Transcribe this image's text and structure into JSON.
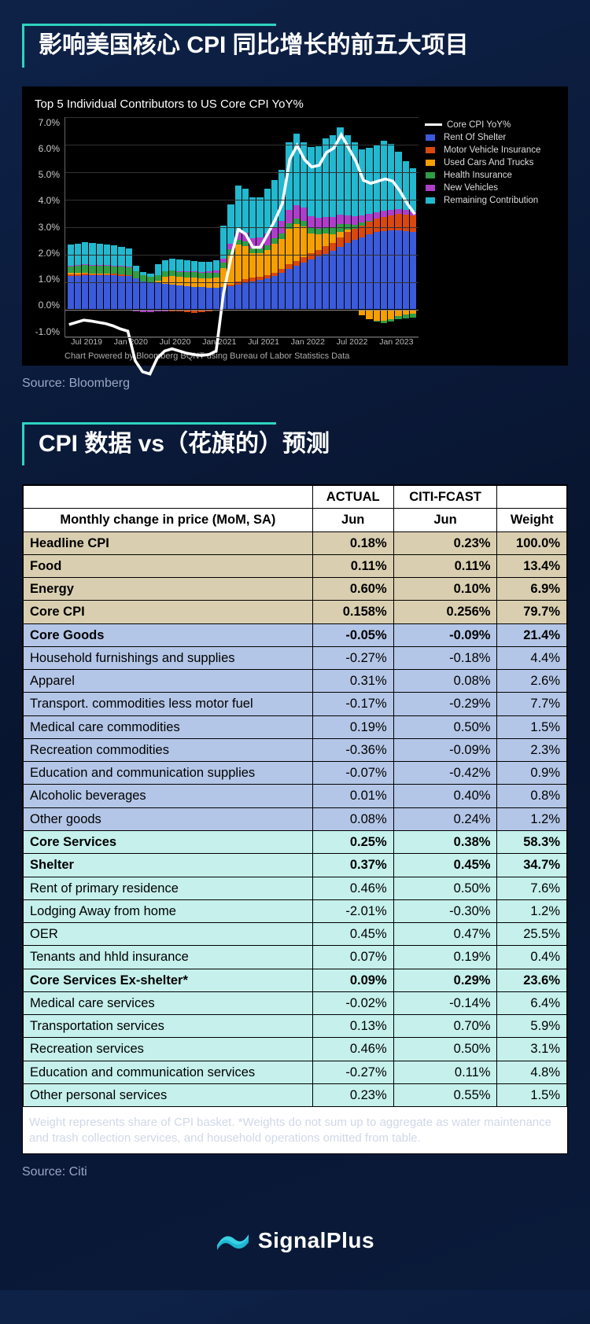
{
  "section1": {
    "title": "影响美国核心 CPI 同比增长的前五大项目",
    "source": "Source: Bloomberg",
    "chart": {
      "title": "Top 5 Individual Contributors to US Core CPI YoY%",
      "note": "Chart Powered by Bloomberg BQNT using Bureau of Labor Statistics Data",
      "ylim": [
        -1.0,
        7.0
      ],
      "yticks": [
        "7.0%",
        "6.0%",
        "5.0%",
        "4.0%",
        "3.0%",
        "2.0%",
        "1.0%",
        "0.0%",
        "-1.0%"
      ],
      "xticks": [
        "Jul 2019",
        "Jan 2020",
        "Jul 2020",
        "Jan 2021",
        "Jul 2021",
        "Jan 2022",
        "Jul 2022",
        "Jan 2023"
      ],
      "legend": [
        {
          "label": "Core CPI YoY%",
          "type": "line",
          "color": "#ffffff"
        },
        {
          "label": "Rent Of Shelter",
          "type": "box",
          "color": "#3b5bdb"
        },
        {
          "label": "Motor Vehicle Insurance",
          "type": "box",
          "color": "#d9480f"
        },
        {
          "label": "Used Cars And Trucks",
          "type": "box",
          "color": "#f59f00"
        },
        {
          "label": "Health Insurance",
          "type": "box",
          "color": "#2f9e44"
        },
        {
          "label": "New Vehicles",
          "type": "box",
          "color": "#ae3ec9"
        },
        {
          "label": "Remaining Contribution",
          "type": "box",
          "color": "#22b8cf"
        }
      ],
      "series_order": [
        "rent",
        "motorins",
        "used",
        "health",
        "newveh",
        "remain"
      ],
      "colors": {
        "rent": "#3b5bdb",
        "motorins": "#d9480f",
        "used": "#f59f00",
        "health": "#2f9e44",
        "newveh": "#ae3ec9",
        "remain": "#22b8cf",
        "line": "#ffffff"
      },
      "n_bars": 48,
      "bars": [
        {
          "rent": 1.2,
          "motorins": 0.05,
          "used": 0.05,
          "health": 0.25,
          "newveh": 0.02,
          "remain": 0.75,
          "total": 2.3
        },
        {
          "rent": 1.2,
          "motorins": 0.05,
          "used": 0.04,
          "health": 0.28,
          "newveh": 0.02,
          "remain": 0.78,
          "total": 2.35
        },
        {
          "rent": 1.22,
          "motorins": 0.05,
          "used": 0.03,
          "health": 0.3,
          "newveh": 0.02,
          "remain": 0.8,
          "total": 2.4
        },
        {
          "rent": 1.22,
          "motorins": 0.04,
          "used": 0.02,
          "health": 0.3,
          "newveh": 0.02,
          "remain": 0.78,
          "total": 2.38
        },
        {
          "rent": 1.22,
          "motorins": 0.04,
          "used": 0.02,
          "health": 0.3,
          "newveh": 0.02,
          "remain": 0.75,
          "total": 2.35
        },
        {
          "rent": 1.22,
          "motorins": 0.04,
          "used": 0.02,
          "health": 0.3,
          "newveh": 0.02,
          "remain": 0.72,
          "total": 2.32
        },
        {
          "rent": 1.22,
          "motorins": 0.04,
          "used": -0.02,
          "health": 0.3,
          "newveh": 0.01,
          "remain": 0.72,
          "total": 2.27
        },
        {
          "rent": 1.2,
          "motorins": 0.04,
          "used": -0.05,
          "health": 0.3,
          "newveh": 0.01,
          "remain": 0.7,
          "total": 2.2
        },
        {
          "rent": 1.18,
          "motorins": 0.03,
          "used": -0.05,
          "health": 0.3,
          "newveh": 0.01,
          "remain": 0.68,
          "total": 2.15
        },
        {
          "rent": 1.1,
          "motorins": 0.0,
          "used": -0.05,
          "health": 0.25,
          "newveh": -0.02,
          "remain": 0.2,
          "total": 1.48
        },
        {
          "rent": 1.0,
          "motorins": -0.02,
          "used": -0.03,
          "health": 0.22,
          "newveh": -0.04,
          "remain": 0.1,
          "total": 1.23
        },
        {
          "rent": 0.95,
          "motorins": -0.03,
          "used": -0.02,
          "health": 0.2,
          "newveh": -0.04,
          "remain": 0.12,
          "total": 1.18
        },
        {
          "rent": 0.92,
          "motorins": -0.05,
          "used": 0.1,
          "health": 0.2,
          "newveh": -0.03,
          "remain": 0.4,
          "total": 1.54
        },
        {
          "rent": 0.9,
          "motorins": -0.05,
          "used": 0.25,
          "health": 0.2,
          "newveh": -0.02,
          "remain": 0.42,
          "total": 1.7
        },
        {
          "rent": 0.88,
          "motorins": -0.06,
          "used": 0.3,
          "health": 0.2,
          "newveh": 0.0,
          "remain": 0.43,
          "total": 1.75
        },
        {
          "rent": 0.85,
          "motorins": -0.08,
          "used": 0.3,
          "health": 0.2,
          "newveh": 0.02,
          "remain": 0.41,
          "total": 1.7
        },
        {
          "rent": 0.82,
          "motorins": -0.1,
          "used": 0.3,
          "health": 0.2,
          "newveh": 0.03,
          "remain": 0.4,
          "total": 1.65
        },
        {
          "rent": 0.8,
          "motorins": -0.12,
          "used": 0.32,
          "health": 0.2,
          "newveh": 0.04,
          "remain": 0.38,
          "total": 1.62
        },
        {
          "rent": 0.78,
          "motorins": -0.1,
          "used": 0.33,
          "health": 0.18,
          "newveh": 0.05,
          "remain": 0.36,
          "total": 1.6
        },
        {
          "rent": 0.76,
          "motorins": -0.08,
          "used": 0.35,
          "health": 0.18,
          "newveh": 0.06,
          "remain": 0.35,
          "total": 1.62
        },
        {
          "rent": 0.75,
          "motorins": -0.05,
          "used": 0.38,
          "health": 0.18,
          "newveh": 0.08,
          "remain": 0.36,
          "total": 1.7
        },
        {
          "rent": 0.78,
          "motorins": 0.0,
          "used": 0.7,
          "health": 0.18,
          "newveh": 0.15,
          "remain": 1.2,
          "total": 3.01
        },
        {
          "rent": 0.82,
          "motorins": 0.05,
          "used": 1.1,
          "health": 0.18,
          "newveh": 0.2,
          "remain": 1.45,
          "total": 3.8
        },
        {
          "rent": 0.88,
          "motorins": 0.1,
          "used": 1.35,
          "health": 0.18,
          "newveh": 0.25,
          "remain": 1.7,
          "total": 4.46
        },
        {
          "rent": 0.95,
          "motorins": 0.12,
          "used": 1.2,
          "health": 0.18,
          "newveh": 0.3,
          "remain": 1.6,
          "total": 4.35
        },
        {
          "rent": 1.0,
          "motorins": 0.12,
          "used": 0.9,
          "health": 0.18,
          "newveh": 0.35,
          "remain": 1.5,
          "total": 4.05
        },
        {
          "rent": 1.05,
          "motorins": 0.12,
          "used": 0.85,
          "health": 0.18,
          "newveh": 0.4,
          "remain": 1.45,
          "total": 4.05
        },
        {
          "rent": 1.1,
          "motorins": 0.12,
          "used": 0.9,
          "health": 0.19,
          "newveh": 0.42,
          "remain": 1.62,
          "total": 4.35
        },
        {
          "rent": 1.18,
          "motorins": 0.12,
          "used": 1.05,
          "health": 0.2,
          "newveh": 0.42,
          "remain": 1.7,
          "total": 4.67
        },
        {
          "rent": 1.3,
          "motorins": 0.14,
          "used": 1.1,
          "health": 0.2,
          "newveh": 0.45,
          "remain": 1.85,
          "total": 5.04
        },
        {
          "rent": 1.45,
          "motorins": 0.16,
          "used": 1.3,
          "health": 0.2,
          "newveh": 0.48,
          "remain": 2.45,
          "total": 6.04
        },
        {
          "rent": 1.55,
          "motorins": 0.18,
          "used": 1.35,
          "health": 0.2,
          "newveh": 0.48,
          "remain": 2.6,
          "total": 6.36
        },
        {
          "rent": 1.68,
          "motorins": 0.2,
          "used": 1.1,
          "health": 0.2,
          "newveh": 0.48,
          "remain": 2.38,
          "total": 6.04
        },
        {
          "rent": 1.8,
          "motorins": 0.22,
          "used": 0.7,
          "health": 0.2,
          "newveh": 0.45,
          "remain": 2.5,
          "total": 5.87
        },
        {
          "rent": 1.9,
          "motorins": 0.24,
          "used": 0.55,
          "health": 0.2,
          "newveh": 0.42,
          "remain": 2.6,
          "total": 5.91
        },
        {
          "rent": 2.0,
          "motorins": 0.27,
          "used": 0.45,
          "health": 0.22,
          "newveh": 0.4,
          "remain": 2.86,
          "total": 6.2
        },
        {
          "rent": 2.1,
          "motorins": 0.3,
          "used": 0.3,
          "health": 0.24,
          "newveh": 0.38,
          "remain": 2.98,
          "total": 6.3
        },
        {
          "rent": 2.25,
          "motorins": 0.35,
          "used": 0.2,
          "health": 0.26,
          "newveh": 0.35,
          "remain": 3.19,
          "total": 6.6
        },
        {
          "rent": 2.4,
          "motorins": 0.38,
          "used": 0.08,
          "health": 0.22,
          "newveh": 0.32,
          "remain": 2.9,
          "total": 6.3
        },
        {
          "rent": 2.5,
          "motorins": 0.4,
          "used": -0.05,
          "health": 0.15,
          "newveh": 0.3,
          "remain": 2.7,
          "total": 6.0
        },
        {
          "rent": 2.6,
          "motorins": 0.42,
          "used": -0.22,
          "health": 0.1,
          "newveh": 0.27,
          "remain": 2.4,
          "total": 5.57
        },
        {
          "rent": 2.7,
          "motorins": 0.45,
          "used": -0.35,
          "health": 0.05,
          "newveh": 0.25,
          "remain": 2.4,
          "total": 5.5
        },
        {
          "rent": 2.78,
          "motorins": 0.48,
          "used": -0.4,
          "health": -0.02,
          "newveh": 0.23,
          "remain": 2.48,
          "total": 5.55
        },
        {
          "rent": 2.82,
          "motorins": 0.52,
          "used": -0.42,
          "health": -0.08,
          "newveh": 0.21,
          "remain": 2.55,
          "total": 5.6
        },
        {
          "rent": 2.85,
          "motorins": 0.55,
          "used": -0.35,
          "health": -0.1,
          "newveh": 0.2,
          "remain": 2.4,
          "total": 5.55
        },
        {
          "rent": 2.85,
          "motorins": 0.58,
          "used": -0.25,
          "health": -0.12,
          "newveh": 0.18,
          "remain": 2.08,
          "total": 5.32
        },
        {
          "rent": 2.82,
          "motorins": 0.6,
          "used": -0.18,
          "health": -0.15,
          "newveh": 0.16,
          "remain": 1.78,
          "total": 5.03
        },
        {
          "rent": 2.78,
          "motorins": 0.6,
          "used": -0.15,
          "health": -0.15,
          "newveh": 0.14,
          "remain": 1.58,
          "total": 4.8
        }
      ]
    }
  },
  "section2": {
    "title": "CPI 数据 vs（花旗的）预测",
    "source": "Source: Citi",
    "table": {
      "col_headers": {
        "c1": "ACTUAL",
        "c2": "CITI-FCAST",
        "c3": ""
      },
      "sub_headers": {
        "label": "Monthly change in price (MoM, SA)",
        "c1": "Jun",
        "c2": "Jun",
        "c3": "Weight"
      },
      "rows": [
        {
          "cls": "tan",
          "label": "Headline CPI",
          "a": "0.18%",
          "f": "0.23%",
          "w": "100.0%"
        },
        {
          "cls": "tan",
          "label": "Food",
          "a": "0.11%",
          "f": "0.11%",
          "w": "13.4%"
        },
        {
          "cls": "tan",
          "label": "Energy",
          "a": "0.60%",
          "f": "0.10%",
          "w": "6.9%"
        },
        {
          "cls": "tan",
          "label": "Core CPI",
          "a": "0.158%",
          "f": "0.256%",
          "w": "79.7%"
        },
        {
          "cls": "blue",
          "label": "Core Goods",
          "a": "-0.05%",
          "f": "-0.09%",
          "w": "21.4%"
        },
        {
          "cls": "lblue",
          "label": "Household furnishings and supplies",
          "a": "-0.27%",
          "f": "-0.18%",
          "w": "4.4%"
        },
        {
          "cls": "lblue",
          "label": "Apparel",
          "a": "0.31%",
          "f": "0.08%",
          "w": "2.6%"
        },
        {
          "cls": "lblue",
          "label": "Transport. commodities less motor fuel",
          "a": "-0.17%",
          "f": "-0.29%",
          "w": "7.7%"
        },
        {
          "cls": "lblue",
          "label": "Medical care commodities",
          "a": "0.19%",
          "f": "0.50%",
          "w": "1.5%"
        },
        {
          "cls": "lblue",
          "label": "Recreation commodities",
          "a": "-0.36%",
          "f": "-0.09%",
          "w": "2.3%"
        },
        {
          "cls": "lblue",
          "label": "Education and communication supplies",
          "a": "-0.07%",
          "f": "-0.42%",
          "w": "0.9%"
        },
        {
          "cls": "lblue",
          "label": "Alcoholic beverages",
          "a": "0.01%",
          "f": "0.40%",
          "w": "0.8%"
        },
        {
          "cls": "lblue",
          "label": "Other goods",
          "a": "0.08%",
          "f": "0.24%",
          "w": "1.2%"
        },
        {
          "cls": "cyan",
          "label": "Core Services",
          "a": "0.25%",
          "f": "0.38%",
          "w": "58.3%"
        },
        {
          "cls": "cyan",
          "label": "Shelter",
          "a": "0.37%",
          "f": "0.45%",
          "w": "34.7%"
        },
        {
          "cls": "lcyan",
          "label": "Rent of primary residence",
          "a": "0.46%",
          "f": "0.50%",
          "w": "7.6%"
        },
        {
          "cls": "lcyan",
          "label": "Lodging Away from home",
          "a": "-2.01%",
          "f": "-0.30%",
          "w": "1.2%"
        },
        {
          "cls": "lcyan",
          "label": "OER",
          "a": "0.45%",
          "f": "0.47%",
          "w": "25.5%"
        },
        {
          "cls": "lcyan",
          "label": "Tenants and hhld insurance",
          "a": "0.07%",
          "f": "0.19%",
          "w": "0.4%"
        },
        {
          "cls": "cyan",
          "label": "Core Services Ex-shelter*",
          "a": "0.09%",
          "f": "0.29%",
          "w": "23.6%"
        },
        {
          "cls": "lcyan",
          "label": "Medical care services",
          "a": "-0.02%",
          "f": "-0.14%",
          "w": "6.4%"
        },
        {
          "cls": "lcyan",
          "label": "Transportation services",
          "a": "0.13%",
          "f": "0.70%",
          "w": "5.9%"
        },
        {
          "cls": "lcyan",
          "label": "Recreation services",
          "a": "0.46%",
          "f": "0.50%",
          "w": "3.1%"
        },
        {
          "cls": "lcyan",
          "label": "Education and communication services",
          "a": "-0.27%",
          "f": "0.11%",
          "w": "4.8%"
        },
        {
          "cls": "lcyan",
          "label": "Other personal services",
          "a": "0.23%",
          "f": "0.55%",
          "w": "1.5%"
        }
      ],
      "footnote": "Weight represents share of CPI basket. *Weights do not sum up to aggregate as water maintenance and trash collection services, and household operations omitted from table."
    }
  },
  "footer": {
    "brand": "SignalPlus"
  }
}
